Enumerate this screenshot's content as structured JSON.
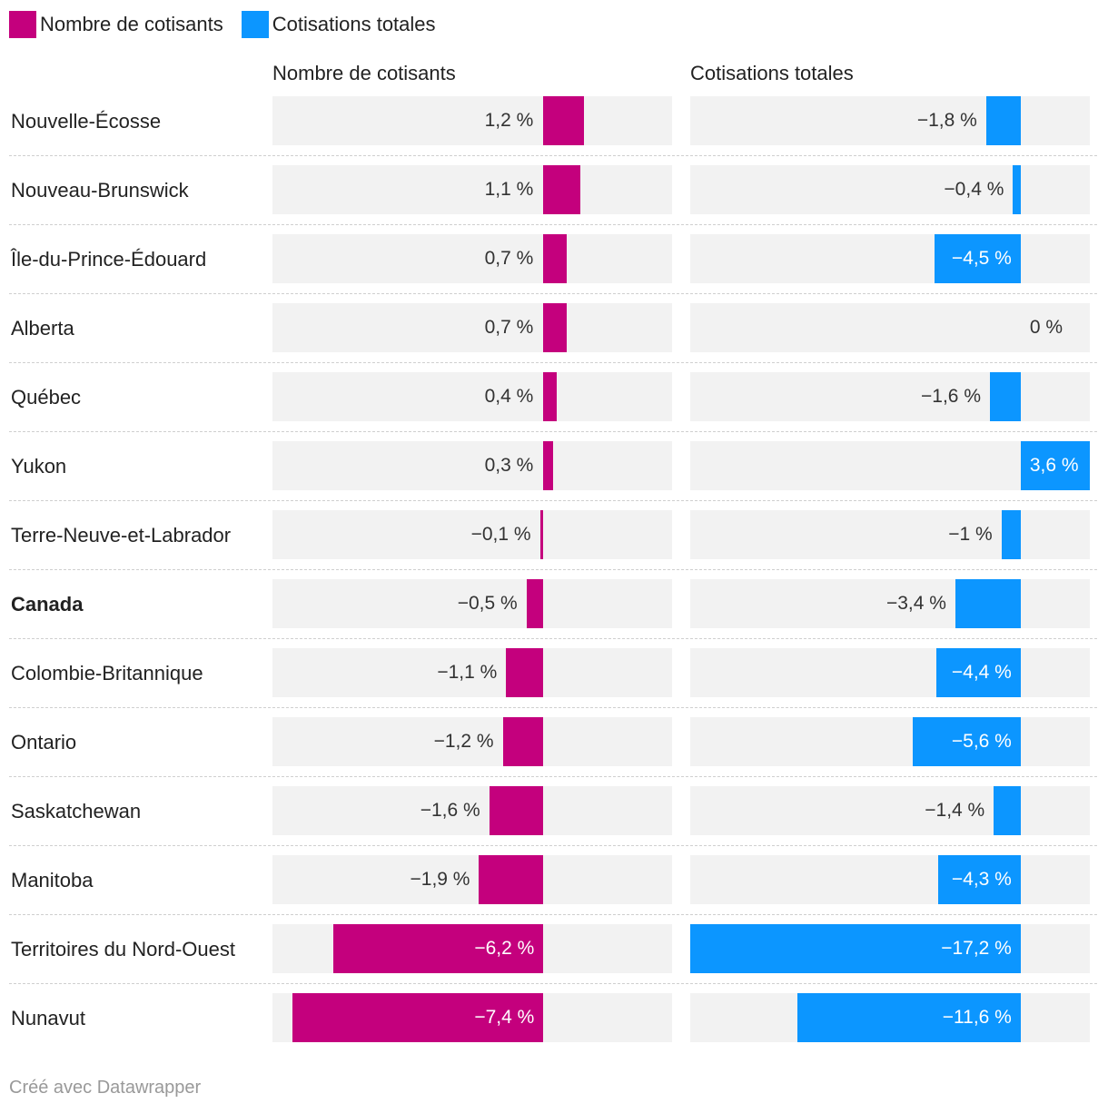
{
  "colors": {
    "series_left": "#c4007d",
    "series_right": "#0c96ff"
  },
  "legend": [
    {
      "label": "Nombre de cotisants",
      "color": "#c4007d"
    },
    {
      "label": "Cotisations totales",
      "color": "#0c96ff"
    }
  ],
  "footer": {
    "credit": "Créé avec Datawrapper"
  },
  "chart_data": {
    "type": "bar",
    "orientation": "horizontal",
    "layout": "split-bars",
    "categories": [
      "Nouvelle-Écosse",
      "Nouveau-Brunswick",
      "Île-du-Prince-Édouard",
      "Alberta",
      "Québec",
      "Yukon",
      "Terre-Neuve-et-Labrador",
      "Canada",
      "Colombie-Britannique",
      "Ontario",
      "Saskatchewan",
      "Manitoba",
      "Territoires du Nord-Ouest",
      "Nunavut"
    ],
    "highlight_category": "Canada",
    "series": [
      {
        "name": "Nombre de cotisants",
        "values": [
          1.2,
          1.1,
          0.7,
          0.7,
          0.4,
          0.3,
          -0.1,
          -0.5,
          -1.1,
          -1.2,
          -1.6,
          -1.9,
          -6.2,
          -7.4
        ],
        "labels": [
          "1,2 %",
          "1,1 %",
          "0,7 %",
          "0,7 %",
          "0,4 %",
          "0,3 %",
          "−0,1 %",
          "−0,5 %",
          "−1,1 %",
          "−1,2 %",
          "−1,6 %",
          "−1,9 %",
          "−6,2 %",
          "−7,4 %"
        ],
        "domain": [
          -8,
          3.8
        ]
      },
      {
        "name": "Cotisations totales",
        "values": [
          -1.8,
          -0.4,
          -4.5,
          0,
          -1.6,
          3.6,
          -1,
          -3.4,
          -4.4,
          -5.6,
          -1.4,
          -4.3,
          -17.2,
          -11.6
        ],
        "labels": [
          "−1,8 %",
          "−0,4 %",
          "−4,5 %",
          "0 %",
          "−1,6 %",
          "3,6 %",
          "−1 %",
          "−3,4 %",
          "−4,4 %",
          "−5,6 %",
          "−1,4 %",
          "−4,3 %",
          "−17,2 %",
          "−11,6 %"
        ],
        "domain": [
          -17.2,
          3.6
        ]
      }
    ]
  }
}
